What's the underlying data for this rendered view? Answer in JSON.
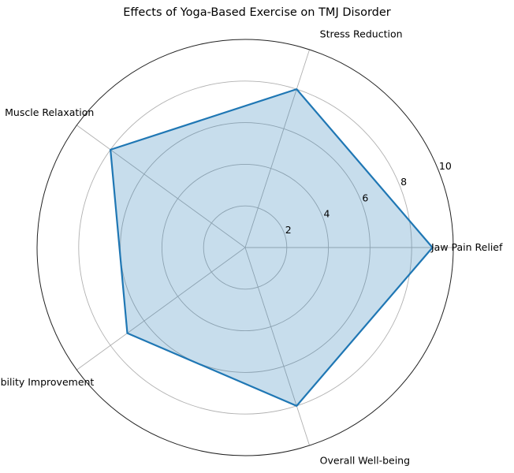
{
  "chart_data": {
    "type": "radar",
    "title": "Effects of Yoga-Based Exercise on TMJ Disorder",
    "categories": [
      "Jaw Pain Relief",
      "Stress Reduction",
      "Muscle Relaxation",
      "Mobility Improvement",
      "Overall Well-being"
    ],
    "series": [
      {
        "values": [
          9,
          8,
          8,
          7,
          8
        ],
        "color": "#1f77b4"
      }
    ],
    "rlim": [
      0,
      10
    ],
    "rticks": [
      2,
      4,
      6,
      8,
      10
    ],
    "grid": true,
    "fill_color": "#1f77b4"
  }
}
